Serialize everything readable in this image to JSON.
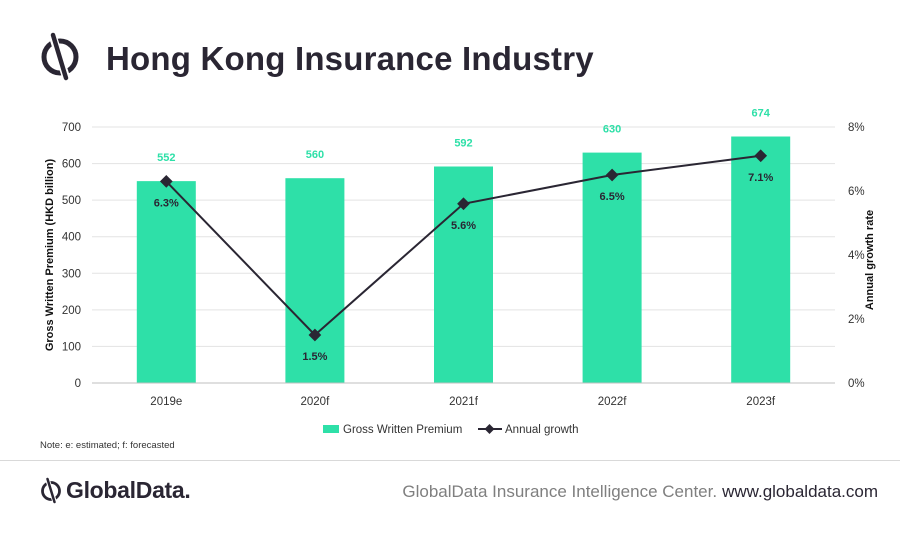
{
  "header": {
    "title": "Hong Kong Insurance Industry",
    "logo_icon": "globaldata-logo-icon"
  },
  "chart_data": {
    "type": "bar",
    "title": "Hong Kong Insurance Industry",
    "categories": [
      "2019e",
      "2020f",
      "2021f",
      "2022f",
      "2023f"
    ],
    "series": [
      {
        "name": "Gross Written Premium",
        "type": "bar",
        "axis": "left",
        "values": [
          552,
          560,
          592,
          630,
          674
        ],
        "labels": [
          "552",
          "560",
          "592",
          "630",
          "674"
        ],
        "color": "#2ee0a8"
      },
      {
        "name": "Annual growth",
        "type": "line",
        "axis": "right",
        "values": [
          6.3,
          1.5,
          5.6,
          6.5,
          7.1
        ],
        "labels": [
          "6.3%",
          "1.5%",
          "5.6%",
          "6.5%",
          "7.1%"
        ],
        "color": "#2a2633"
      }
    ],
    "ylabel": "Gross Written Premium (HKD billion)",
    "ylim": [
      0,
      700
    ],
    "yticks": [
      "0",
      "100",
      "200",
      "300",
      "400",
      "500",
      "600",
      "700"
    ],
    "y2label": "Annual growth rate",
    "y2lim": [
      0,
      8
    ],
    "y2ticks": [
      "0%",
      "2%",
      "4%",
      "6%",
      "8%"
    ],
    "grid": true,
    "legend": "bottom"
  },
  "note": "Note: e: estimated;  f: forecasted",
  "footer": {
    "brand": "GlobalData.",
    "center": "GlobalData Insurance Intelligence Center.",
    "url": "www.globaldata.com"
  }
}
